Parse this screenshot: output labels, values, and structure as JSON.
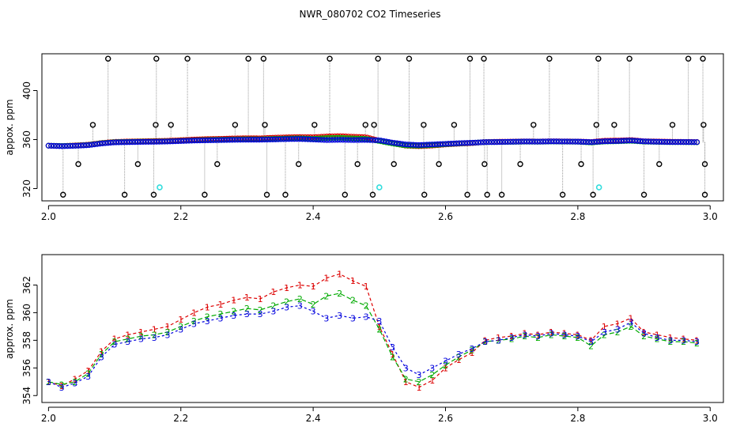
{
  "title": "NWR_080702  CO2 Timeseries",
  "colors": {
    "black": "#000000",
    "red": "#dd0000",
    "green": "#00aa00",
    "blue": "#0000dd",
    "cyan": "#33dddd",
    "grey": "#999999"
  },
  "chart_data": [
    {
      "type": "scatter",
      "title": "",
      "xlabel": "",
      "ylabel": "appox. ppm",
      "xlim": [
        1.99,
        3.02
      ],
      "ylim": [
        310,
        430
      ],
      "xticks": [
        "2.0",
        "2.2",
        "2.4",
        "2.6",
        "2.8",
        "3.0"
      ],
      "xtick_values": [
        2.0,
        2.2,
        2.4,
        2.6,
        2.8,
        3.0
      ],
      "yticks": [
        "320",
        "360",
        "400"
      ],
      "ytick_values": [
        320,
        360,
        400
      ],
      "grid": false,
      "outlier_points": {
        "high_x": [
          2.09,
          2.163,
          2.21,
          2.302,
          2.325,
          2.425,
          2.498,
          2.545,
          2.637,
          2.658,
          2.757,
          2.831,
          2.878,
          2.967,
          2.989
        ],
        "high_y": 426,
        "low_x": [
          2.022,
          2.115,
          2.159,
          2.236,
          2.33,
          2.358,
          2.448,
          2.49,
          2.568,
          2.633,
          2.663,
          2.685,
          2.777,
          2.823,
          2.9,
          2.992
        ],
        "low_y": 315,
        "mid_x": [
          2.045,
          2.067,
          2.135,
          2.162,
          2.185,
          2.255,
          2.282,
          2.327,
          2.378,
          2.402,
          2.467,
          2.479,
          2.492,
          2.522,
          2.567,
          2.59,
          2.613,
          2.659,
          2.713,
          2.733,
          2.805,
          2.828,
          2.855,
          2.923,
          2.943,
          2.99,
          2.992
        ],
        "mid_y": [
          340,
          372,
          340,
          372,
          372,
          340,
          372,
          372,
          340,
          372,
          340,
          372,
          372,
          340,
          372,
          340,
          372,
          340,
          340,
          372,
          340,
          372,
          372,
          340,
          372,
          372,
          340
        ]
      },
      "cyan_points": {
        "x": [
          2.168,
          2.5,
          2.832
        ],
        "y": [
          321,
          321,
          321
        ]
      },
      "series_note": "dense series 1/2/3 plotted as red/green/blue circles",
      "series": [
        {
          "name": "1",
          "x": [
            2.0,
            2.02,
            2.04,
            2.06,
            2.08,
            2.1,
            2.12,
            2.14,
            2.16,
            2.18,
            2.2,
            2.22,
            2.24,
            2.26,
            2.28,
            2.3,
            2.32,
            2.34,
            2.36,
            2.38,
            2.4,
            2.42,
            2.44,
            2.46,
            2.48,
            2.5,
            2.52,
            2.54,
            2.56,
            2.58,
            2.6,
            2.62,
            2.64,
            2.66,
            2.68,
            2.7,
            2.72,
            2.74,
            2.76,
            2.78,
            2.8,
            2.82,
            2.84,
            2.86,
            2.88,
            2.9,
            2.92,
            2.94,
            2.96,
            2.98
          ],
          "y": [
            355,
            354.7,
            355.2,
            355.8,
            357.2,
            358.1,
            358.4,
            358.6,
            358.8,
            359.0,
            359.5,
            360.0,
            360.4,
            360.6,
            360.9,
            361.1,
            361.0,
            361.5,
            361.8,
            362.0,
            361.9,
            362.5,
            362.8,
            362.3,
            361.9,
            359.0,
            357.0,
            355.0,
            354.6,
            355.1,
            356.0,
            356.6,
            357.1,
            358.0,
            358.2,
            358.3,
            358.5,
            358.4,
            358.6,
            358.5,
            358.4,
            358.0,
            359.0,
            359.2,
            359.6,
            358.6,
            358.4,
            358.2,
            358.1,
            358.0
          ]
        },
        {
          "name": "2",
          "x": [
            2.0,
            2.02,
            2.04,
            2.06,
            2.08,
            2.1,
            2.12,
            2.14,
            2.16,
            2.18,
            2.2,
            2.22,
            2.24,
            2.26,
            2.28,
            2.3,
            2.32,
            2.34,
            2.36,
            2.38,
            2.4,
            2.42,
            2.44,
            2.46,
            2.48,
            2.5,
            2.52,
            2.54,
            2.56,
            2.58,
            2.6,
            2.62,
            2.64,
            2.66,
            2.68,
            2.7,
            2.72,
            2.74,
            2.76,
            2.78,
            2.8,
            2.82,
            2.84,
            2.86,
            2.88,
            2.9,
            2.92,
            2.94,
            2.96,
            2.98
          ],
          "y": [
            355,
            354.8,
            355.0,
            355.6,
            357.0,
            357.9,
            358.1,
            358.3,
            358.4,
            358.6,
            359.0,
            359.4,
            359.7,
            359.9,
            360.1,
            360.3,
            360.2,
            360.5,
            360.8,
            361.0,
            360.6,
            361.2,
            361.4,
            360.9,
            360.5,
            358.8,
            356.8,
            355.2,
            355.0,
            355.5,
            356.2,
            356.8,
            357.3,
            357.9,
            358.0,
            358.1,
            358.3,
            358.2,
            358.4,
            358.3,
            358.2,
            357.6,
            358.4,
            358.6,
            359.0,
            358.3,
            358.1,
            357.9,
            357.9,
            357.8
          ]
        },
        {
          "name": "3",
          "x": [
            2.0,
            2.02,
            2.04,
            2.06,
            2.08,
            2.1,
            2.12,
            2.14,
            2.16,
            2.18,
            2.2,
            2.22,
            2.24,
            2.26,
            2.28,
            2.3,
            2.32,
            2.34,
            2.36,
            2.38,
            2.4,
            2.42,
            2.44,
            2.46,
            2.48,
            2.5,
            2.52,
            2.54,
            2.56,
            2.58,
            2.6,
            2.62,
            2.64,
            2.66,
            2.68,
            2.7,
            2.72,
            2.74,
            2.76,
            2.78,
            2.8,
            2.82,
            2.84,
            2.86,
            2.88,
            2.9,
            2.92,
            2.94,
            2.96,
            2.98
          ],
          "y": [
            355,
            354.6,
            354.9,
            355.4,
            356.8,
            357.7,
            357.9,
            358.1,
            358.2,
            358.4,
            358.8,
            359.2,
            359.4,
            359.6,
            359.8,
            359.9,
            359.9,
            360.1,
            360.4,
            360.5,
            360.1,
            359.6,
            359.8,
            359.6,
            359.7,
            359.4,
            357.5,
            356.0,
            355.5,
            356.0,
            356.5,
            357.0,
            357.4,
            357.9,
            358.0,
            358.2,
            358.4,
            358.3,
            358.5,
            358.4,
            358.3,
            357.9,
            358.6,
            358.8,
            359.3,
            358.5,
            358.2,
            358.0,
            358.0,
            357.9
          ]
        }
      ]
    },
    {
      "type": "line",
      "title": "",
      "xlabel": "",
      "ylabel": "approx. ppm",
      "xlim": [
        1.99,
        3.02
      ],
      "ylim": [
        353.5,
        364.2
      ],
      "xticks": [
        "2.0",
        "2.2",
        "2.4",
        "2.6",
        "2.8",
        "3.0"
      ],
      "xtick_values": [
        2.0,
        2.2,
        2.4,
        2.6,
        2.8,
        3.0
      ],
      "yticks": [
        "354",
        "356",
        "358",
        "360",
        "362"
      ],
      "ytick_values": [
        354,
        356,
        358,
        360,
        362
      ],
      "grid": false,
      "series": [
        {
          "name": "1",
          "x": [
            2.0,
            2.02,
            2.04,
            2.06,
            2.08,
            2.1,
            2.12,
            2.14,
            2.16,
            2.18,
            2.2,
            2.22,
            2.24,
            2.26,
            2.28,
            2.3,
            2.32,
            2.34,
            2.36,
            2.38,
            2.4,
            2.42,
            2.44,
            2.46,
            2.48,
            2.5,
            2.52,
            2.54,
            2.56,
            2.58,
            2.6,
            2.62,
            2.64,
            2.66,
            2.68,
            2.7,
            2.72,
            2.74,
            2.76,
            2.78,
            2.8,
            2.82,
            2.84,
            2.86,
            2.88,
            2.9,
            2.92,
            2.94,
            2.96,
            2.98
          ],
          "y": [
            355,
            354.7,
            355.2,
            355.8,
            357.2,
            358.1,
            358.4,
            358.6,
            358.8,
            359.0,
            359.5,
            360.0,
            360.4,
            360.6,
            360.9,
            361.1,
            361.0,
            361.5,
            361.8,
            362.0,
            361.9,
            362.5,
            362.8,
            362.3,
            361.9,
            359.0,
            357.0,
            355.0,
            354.6,
            355.1,
            356.0,
            356.6,
            357.1,
            358.0,
            358.2,
            358.3,
            358.5,
            358.4,
            358.6,
            358.5,
            358.4,
            358.0,
            359.0,
            359.2,
            359.6,
            358.6,
            358.4,
            358.2,
            358.1,
            358.0
          ]
        },
        {
          "name": "2",
          "x": [
            2.0,
            2.02,
            2.04,
            2.06,
            2.08,
            2.1,
            2.12,
            2.14,
            2.16,
            2.18,
            2.2,
            2.22,
            2.24,
            2.26,
            2.28,
            2.3,
            2.32,
            2.34,
            2.36,
            2.38,
            2.4,
            2.42,
            2.44,
            2.46,
            2.48,
            2.5,
            2.52,
            2.54,
            2.56,
            2.58,
            2.6,
            2.62,
            2.64,
            2.66,
            2.68,
            2.7,
            2.72,
            2.74,
            2.76,
            2.78,
            2.8,
            2.82,
            2.84,
            2.86,
            2.88,
            2.9,
            2.92,
            2.94,
            2.96,
            2.98
          ],
          "y": [
            355,
            354.8,
            355.0,
            355.6,
            357.0,
            357.9,
            358.1,
            358.3,
            358.4,
            358.6,
            359.0,
            359.4,
            359.7,
            359.9,
            360.1,
            360.3,
            360.2,
            360.5,
            360.8,
            361.0,
            360.6,
            361.2,
            361.4,
            360.9,
            360.5,
            358.8,
            356.8,
            355.2,
            355.0,
            355.5,
            356.2,
            356.8,
            357.3,
            357.9,
            358.0,
            358.1,
            358.3,
            358.2,
            358.4,
            358.3,
            358.2,
            357.6,
            358.4,
            358.6,
            359.0,
            358.3,
            358.1,
            357.9,
            357.9,
            357.8
          ]
        },
        {
          "name": "3",
          "x": [
            2.0,
            2.02,
            2.04,
            2.06,
            2.08,
            2.1,
            2.12,
            2.14,
            2.16,
            2.18,
            2.2,
            2.22,
            2.24,
            2.26,
            2.28,
            2.3,
            2.32,
            2.34,
            2.36,
            2.38,
            2.4,
            2.42,
            2.44,
            2.46,
            2.48,
            2.5,
            2.52,
            2.54,
            2.56,
            2.58,
            2.6,
            2.62,
            2.64,
            2.66,
            2.68,
            2.7,
            2.72,
            2.74,
            2.76,
            2.78,
            2.8,
            2.82,
            2.84,
            2.86,
            2.88,
            2.9,
            2.92,
            2.94,
            2.96,
            2.98
          ],
          "y": [
            355,
            354.6,
            354.9,
            355.4,
            356.8,
            357.7,
            357.9,
            358.1,
            358.2,
            358.4,
            358.8,
            359.2,
            359.4,
            359.6,
            359.8,
            359.9,
            359.9,
            360.1,
            360.4,
            360.5,
            360.1,
            359.6,
            359.8,
            359.6,
            359.7,
            359.4,
            357.5,
            356.0,
            355.5,
            356.0,
            356.5,
            357.0,
            357.4,
            357.9,
            358.0,
            358.2,
            358.4,
            358.3,
            358.5,
            358.4,
            358.3,
            357.9,
            358.6,
            358.8,
            359.3,
            358.5,
            358.2,
            358.0,
            358.0,
            357.9
          ]
        }
      ]
    }
  ]
}
